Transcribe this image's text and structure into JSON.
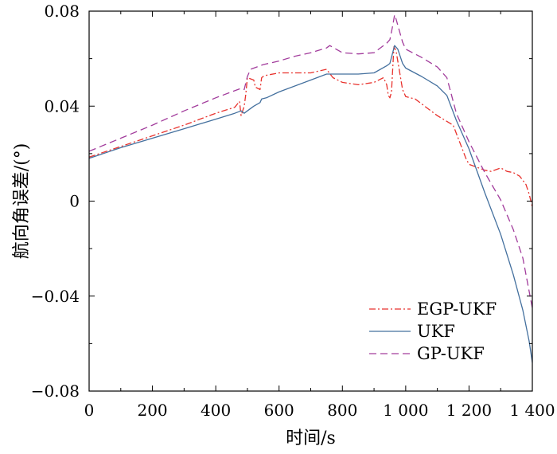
{
  "chart_data": {
    "type": "line",
    "title": "",
    "xlabel": "时间/s",
    "ylabel": "航向角误差/(°)",
    "xlim": [
      0,
      1400
    ],
    "ylim": [
      -0.08,
      0.08
    ],
    "xticks": [
      0,
      200,
      400,
      600,
      800,
      1000,
      1200,
      1400
    ],
    "xtick_labels": [
      "0",
      "200",
      "400",
      "600",
      "800",
      "1 000",
      "1 200",
      "1 400"
    ],
    "yticks": [
      -0.08,
      -0.04,
      0,
      0.04,
      0.08
    ],
    "ytick_labels": [
      "−0.08",
      "−0.04",
      "0",
      "0.04",
      "0.08"
    ],
    "grid": false,
    "legend_position": "bottom-right",
    "series": [
      {
        "name": "EGP-UKF",
        "color": "#e8322d",
        "dash": "dashdot",
        "x": [
          0,
          100,
          200,
          300,
          400,
          460,
          475,
          480,
          490,
          495,
          500,
          520,
          525,
          540,
          545,
          550,
          560,
          600,
          700,
          750,
          770,
          800,
          850,
          900,
          930,
          940,
          945,
          950,
          955,
          960,
          963,
          970,
          990,
          1000,
          1030,
          1060,
          1100,
          1150,
          1190,
          1200,
          1230,
          1250,
          1270,
          1300,
          1320,
          1340,
          1360,
          1380,
          1390,
          1400
        ],
        "y": [
          0.0185,
          0.023,
          0.0275,
          0.032,
          0.037,
          0.0395,
          0.042,
          0.036,
          0.04,
          0.045,
          0.052,
          0.051,
          0.048,
          0.047,
          0.052,
          0.0525,
          0.053,
          0.054,
          0.054,
          0.0555,
          0.052,
          0.05,
          0.049,
          0.05,
          0.052,
          0.049,
          0.0445,
          0.0435,
          0.046,
          0.058,
          0.065,
          0.063,
          0.047,
          0.044,
          0.043,
          0.04,
          0.036,
          0.032,
          0.018,
          0.0155,
          0.014,
          0.013,
          0.0125,
          0.014,
          0.0125,
          0.012,
          0.0105,
          0.007,
          0.003,
          -0.0025
        ]
      },
      {
        "name": "UKF",
        "color": "#44709e",
        "dash": "solid",
        "x": [
          0,
          100,
          200,
          300,
          400,
          460,
          480,
          490,
          500,
          520,
          540,
          545,
          560,
          600,
          700,
          750,
          800,
          850,
          900,
          940,
          950,
          960,
          965,
          975,
          990,
          1000,
          1050,
          1100,
          1130,
          1160,
          1200,
          1250,
          1300,
          1340,
          1370,
          1390,
          1400
        ],
        "y": [
          0.018,
          0.0225,
          0.0265,
          0.0305,
          0.0345,
          0.037,
          0.038,
          0.037,
          0.038,
          0.04,
          0.0415,
          0.043,
          0.0435,
          0.046,
          0.051,
          0.0535,
          0.0535,
          0.0535,
          0.054,
          0.057,
          0.058,
          0.063,
          0.0655,
          0.064,
          0.058,
          0.056,
          0.0525,
          0.0485,
          0.0445,
          0.034,
          0.022,
          0.0035,
          -0.014,
          -0.031,
          -0.046,
          -0.059,
          -0.068
        ]
      },
      {
        "name": "GP-UKF",
        "color": "#a23c9c",
        "dash": "dashed",
        "x": [
          0,
          100,
          200,
          300,
          400,
          460,
          480,
          490,
          500,
          510,
          550,
          600,
          650,
          700,
          750,
          760,
          800,
          850,
          900,
          930,
          940,
          950,
          960,
          965,
          970,
          990,
          1000,
          1050,
          1100,
          1130,
          1160,
          1200,
          1250,
          1300,
          1340,
          1370,
          1390,
          1400
        ],
        "y": [
          0.021,
          0.0265,
          0.032,
          0.038,
          0.0435,
          0.0465,
          0.0475,
          0.047,
          0.0525,
          0.0555,
          0.0575,
          0.059,
          0.061,
          0.0625,
          0.0645,
          0.0655,
          0.0625,
          0.062,
          0.0625,
          0.0655,
          0.0665,
          0.068,
          0.0745,
          0.0785,
          0.0765,
          0.067,
          0.064,
          0.0605,
          0.0565,
          0.052,
          0.037,
          0.025,
          0.012,
          0.0005,
          -0.012,
          -0.024,
          -0.038,
          -0.045
        ]
      }
    ]
  }
}
